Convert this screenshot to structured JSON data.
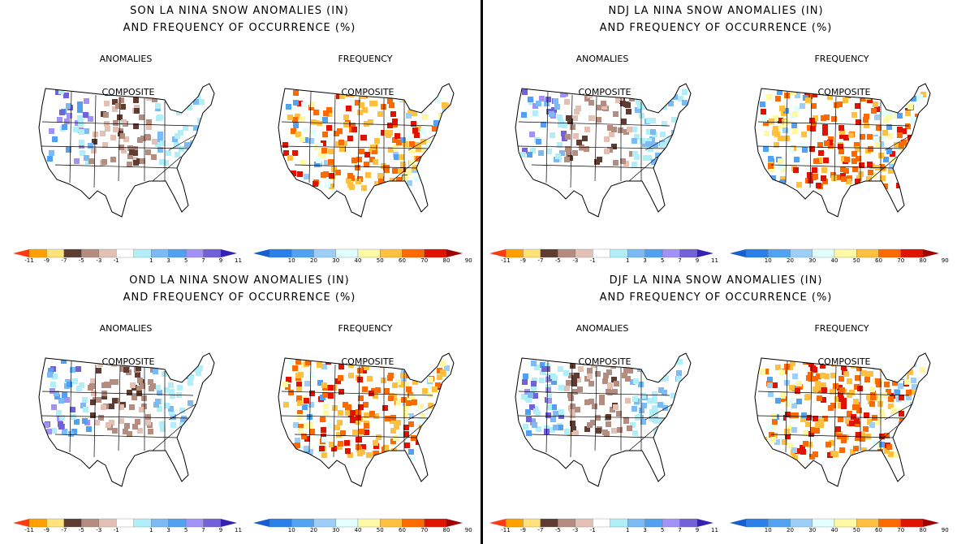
{
  "panels": [
    {
      "title_line1": "SON LA NINA SNOW ANOMALIES (IN)",
      "title_line2": "AND FREQUENCY OF OCCURRENCE (%)",
      "anomalies_label": "ANOMALIES",
      "frequency_label": "FREQUENCY",
      "composite_label": "COMPOSITE"
    },
    {
      "title_line1": "NDJ LA NINA SNOW ANOMALIES (IN)",
      "title_line2": "AND FREQUENCY OF OCCURRENCE (%)",
      "anomalies_label": "ANOMALIES",
      "frequency_label": "FREQUENCY",
      "composite_label": "COMPOSITE"
    },
    {
      "title_line1": "OND LA NINA SNOW ANOMALIES (IN)",
      "title_line2": "AND FREQUENCY OF OCCURRENCE (%)",
      "anomalies_label": "ANOMALIES",
      "frequency_label": "FREQUENCY",
      "composite_label": "COMPOSITE"
    },
    {
      "title_line1": "DJF LA NINA SNOW ANOMALIES (IN)",
      "title_line2": "AND FREQUENCY OF OCCURRENCE (%)",
      "anomalies_label": "ANOMALIES",
      "frequency_label": "FREQUENCY",
      "composite_label": "COMPOSITE"
    }
  ],
  "anomaly_scale": {
    "ticks": [
      "-11",
      "-9",
      "-7",
      "-5",
      "-3",
      "-1",
      "1",
      "3",
      "5",
      "7",
      "9",
      "11"
    ],
    "colors": [
      "#ff3a10",
      "#ffa000",
      "#ffe27a",
      "#5e3c32",
      "#b48c80",
      "#e2c0b4",
      "#ffffff",
      "#b2eef8",
      "#7cbaf6",
      "#52a0f0",
      "#a292f8",
      "#7262da",
      "#3422b4"
    ]
  },
  "frequency_scale": {
    "ticks": [
      "10",
      "20",
      "30",
      "40",
      "50",
      "60",
      "70",
      "80",
      "90"
    ],
    "colors": [
      "#1560d0",
      "#2a80e8",
      "#52a2f2",
      "#9ccef8",
      "#e2ffff",
      "#fff8a4",
      "#ffc040",
      "#ff6a00",
      "#e01200",
      "#a00000"
    ]
  }
}
